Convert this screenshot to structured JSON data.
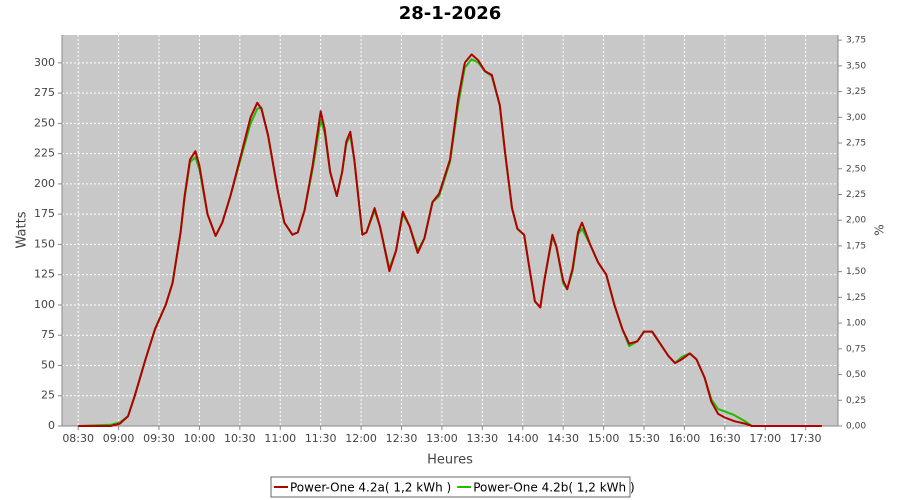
{
  "chart_data": {
    "type": "line",
    "title": "28-1-2026",
    "x_label": "Heures",
    "y_label": "Watts",
    "y2_label": "%",
    "x": [
      "08:30",
      "08:54",
      "09:01",
      "09:07",
      "09:12",
      "09:20",
      "09:27",
      "09:35",
      "09:40",
      "09:46",
      "09:49",
      "09:53",
      "09:57",
      "10:00",
      "10:06",
      "10:12",
      "10:17",
      "10:23",
      "10:30",
      "10:38",
      "10:43",
      "10:46",
      "10:51",
      "10:58",
      "11:03",
      "11:09",
      "11:13",
      "11:18",
      "11:24",
      "11:30",
      "11:33",
      "11:37",
      "11:42",
      "11:46",
      "11:49",
      "11:52",
      "11:55",
      "12:01",
      "12:04",
      "12:10",
      "12:14",
      "12:21",
      "12:26",
      "12:31",
      "12:36",
      "12:42",
      "12:47",
      "12:53",
      "12:58",
      "13:06",
      "13:12",
      "13:17",
      "13:22",
      "13:27",
      "13:32",
      "13:37",
      "13:43",
      "13:47",
      "13:52",
      "13:56",
      "14:01",
      "14:05",
      "14:09",
      "14:13",
      "14:16",
      "14:22",
      "14:25",
      "14:30",
      "14:33",
      "14:37",
      "14:41",
      "14:44",
      "14:50",
      "14:56",
      "15:02",
      "15:08",
      "15:14",
      "15:19",
      "15:25",
      "15:30",
      "15:36",
      "15:42",
      "15:48",
      "15:53",
      "15:58",
      "16:04",
      "16:09",
      "16:15",
      "16:20",
      "16:25",
      "16:30",
      "16:37",
      "16:45",
      "16:50",
      "17:42"
    ],
    "series": [
      {
        "name": "Power-One 4.2a( 1,2 kWh )",
        "color": "#b00000",
        "values": [
          0,
          0,
          2,
          8,
          25,
          55,
          80,
          100,
          118,
          160,
          190,
          220,
          227,
          215,
          175,
          157,
          168,
          190,
          220,
          255,
          267,
          262,
          240,
          195,
          168,
          158,
          160,
          178,
          215,
          260,
          245,
          210,
          190,
          210,
          235,
          243,
          220,
          158,
          160,
          180,
          165,
          128,
          145,
          177,
          165,
          143,
          155,
          185,
          192,
          220,
          270,
          300,
          307,
          302,
          293,
          290,
          265,
          225,
          180,
          163,
          158,
          130,
          103,
          98,
          120,
          158,
          148,
          120,
          113,
          130,
          160,
          168,
          150,
          135,
          125,
          100,
          80,
          68,
          70,
          78,
          78,
          68,
          58,
          52,
          55,
          60,
          55,
          40,
          20,
          10,
          7,
          4,
          2,
          0,
          0
        ]
      },
      {
        "name": "Power-One 4.2b( 1,2 kWh )",
        "color": "#22bb00",
        "values": [
          0,
          1,
          3,
          8,
          25,
          55,
          80,
          100,
          118,
          160,
          188,
          218,
          222,
          212,
          175,
          157,
          168,
          190,
          218,
          250,
          262,
          263,
          240,
          195,
          168,
          158,
          160,
          178,
          212,
          253,
          242,
          210,
          190,
          210,
          233,
          240,
          220,
          158,
          160,
          178,
          165,
          130,
          145,
          175,
          165,
          145,
          155,
          185,
          190,
          218,
          265,
          296,
          303,
          300,
          293,
          289,
          265,
          225,
          180,
          163,
          158,
          130,
          103,
          98,
          120,
          156,
          148,
          118,
          113,
          128,
          158,
          163,
          150,
          135,
          125,
          100,
          80,
          66,
          70,
          78,
          78,
          68,
          58,
          52,
          57,
          60,
          55,
          40,
          22,
          14,
          12,
          9,
          4,
          0,
          0
        ]
      }
    ],
    "xlim": [
      "08:18",
      "17:54"
    ],
    "xticks": [
      "08:30",
      "09:00",
      "09:30",
      "10:00",
      "10:30",
      "11:00",
      "11:30",
      "12:00",
      "12:30",
      "13:00",
      "13:30",
      "14:00",
      "14:30",
      "15:00",
      "15:30",
      "16:00",
      "16:30",
      "17:00",
      "17:30"
    ],
    "ylim": [
      0,
      323
    ],
    "yticks": [
      0,
      25,
      50,
      75,
      100,
      125,
      150,
      175,
      200,
      225,
      250,
      275,
      300
    ],
    "y2lim": [
      0,
      3.8
    ],
    "y2ticks": [
      {
        "value": 0,
        "label": "0,00"
      },
      {
        "value": 0.25,
        "label": "0,25"
      },
      {
        "value": 0.5,
        "label": "0,50"
      },
      {
        "value": 0.75,
        "label": "0,75"
      },
      {
        "value": 1,
        "label": "1,00"
      },
      {
        "value": 1.25,
        "label": "1,25"
      },
      {
        "value": 1.5,
        "label": "1,50"
      },
      {
        "value": 1.75,
        "label": "1,75"
      },
      {
        "value": 2,
        "label": "2,00"
      },
      {
        "value": 2.25,
        "label": "2,25"
      },
      {
        "value": 2.5,
        "label": "2,50"
      },
      {
        "value": 2.75,
        "label": "2,75"
      },
      {
        "value": 3,
        "label": "3,00"
      },
      {
        "value": 3.25,
        "label": "3,25"
      },
      {
        "value": 3.5,
        "label": "3,50"
      },
      {
        "value": 3.75,
        "label": "3,75"
      }
    ],
    "grid": true
  }
}
